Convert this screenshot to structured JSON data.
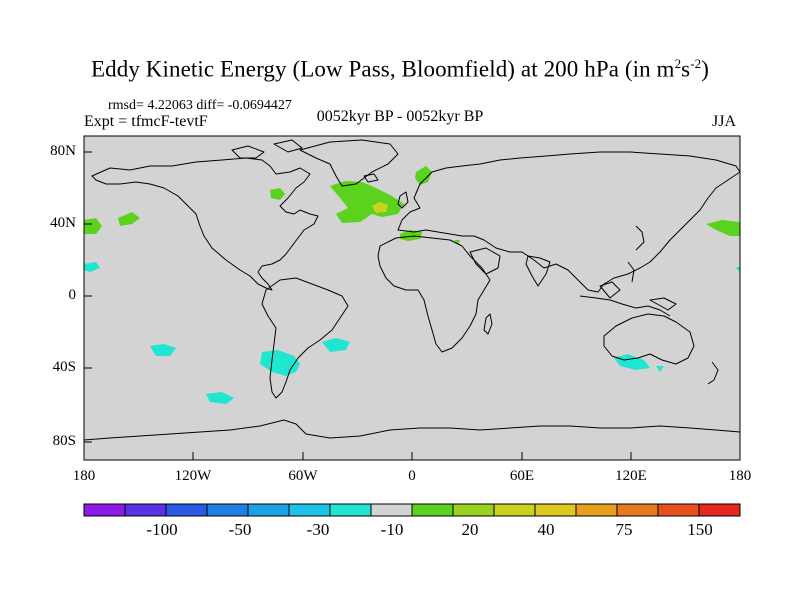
{
  "title": {
    "main": "Eddy Kinetic Energy (Low Pass, Bloomfield) at 200 hPa (in m",
    "sup1": "2",
    "mid": "s",
    "sup2": "-2",
    "close": ")"
  },
  "stats": "rmsd= 4.22063 diff= -0.0694427",
  "experiment": "Expt = tfmcF-tevtF",
  "period": "0052kyr BP - 0052kyr BP",
  "season": "JJA",
  "map": {
    "projection": "cylindrical equidistant",
    "background_color": "#d3d3d3",
    "coastline_color": "#000000",
    "lon_range": [
      -180,
      180
    ],
    "lat_range": [
      -90,
      90
    ],
    "lat_ticks": [
      "80N",
      "40N",
      "0",
      "40S",
      "80S"
    ],
    "lon_ticks": [
      "180",
      "120W",
      "60W",
      "0",
      "60E",
      "120E",
      "180"
    ]
  },
  "colorbar": {
    "colors": [
      "#8a1ae6",
      "#5a32e6",
      "#2a5ae6",
      "#1e7ee6",
      "#1ea0e6",
      "#1ec2e6",
      "#1ee6d0",
      "#d3d3d3",
      "#5ad21e",
      "#96d21e",
      "#c8d21e",
      "#dcc81e",
      "#e6a01e",
      "#e6781e",
      "#e6501e",
      "#e6281e"
    ],
    "labels": [
      "-100",
      "-50",
      "-30",
      "-10",
      "20",
      "40",
      "75",
      "150"
    ]
  },
  "anomalies": [
    {
      "name": "north-atlantic",
      "category": 20,
      "color": "#5ad21e"
    },
    {
      "name": "north-atlantic-core",
      "category": 40,
      "color": "#c8d21e"
    },
    {
      "name": "scandinavia",
      "category": 20,
      "color": "#5ad21e"
    },
    {
      "name": "hudson-bay",
      "category": 20,
      "color": "#5ad21e"
    },
    {
      "name": "mediterranean",
      "category": 20,
      "color": "#5ad21e"
    },
    {
      "name": "north-pacific-west",
      "category": 20,
      "color": "#5ad21e"
    },
    {
      "name": "north-pacific-east",
      "category": 20,
      "color": "#5ad21e"
    },
    {
      "name": "south-america-south",
      "category": -10,
      "color": "#1ee6d0"
    },
    {
      "name": "south-atlantic",
      "category": -10,
      "color": "#1ee6d0"
    },
    {
      "name": "south-pacific-east",
      "category": -10,
      "color": "#1ee6d0"
    },
    {
      "name": "south-pacific-far",
      "category": -10,
      "color": "#1ee6d0"
    },
    {
      "name": "australia-south",
      "category": -10,
      "color": "#1ee6d0"
    },
    {
      "name": "pacific-subtropic",
      "category": -10,
      "color": "#1ee6d0"
    }
  ]
}
